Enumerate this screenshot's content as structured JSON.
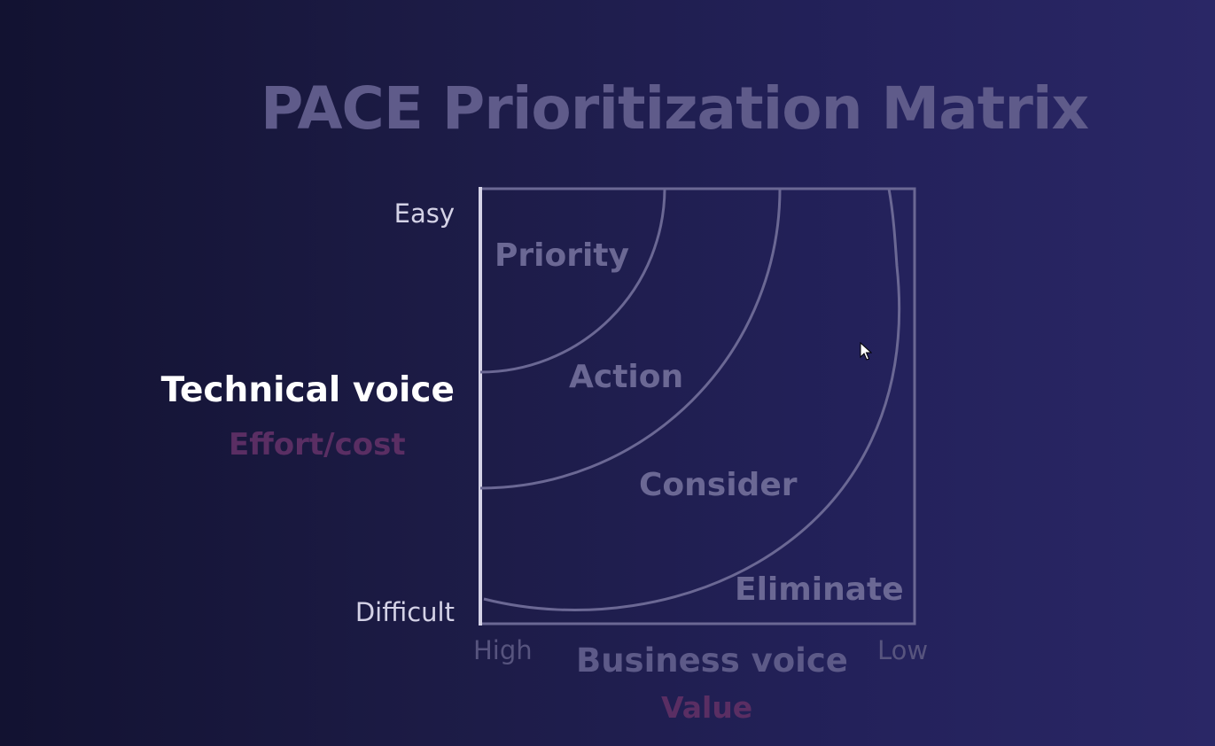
{
  "title": "PACE Prioritization Matrix",
  "y_axis": {
    "top_label": "Easy",
    "bottom_label": "Difficult",
    "title": "Technical voice",
    "subtitle": "Effort/cost"
  },
  "x_axis": {
    "left_label": "High",
    "right_label": "Low",
    "title": "Business voice",
    "subtitle": "Value"
  },
  "zones": {
    "priority": "Priority",
    "action": "Action",
    "consider": "Consider",
    "eliminate": "Eliminate"
  },
  "colors": {
    "title": "#5f5b8a",
    "matrix_lines": "#6b6894",
    "accent_subtitle": "#5a2e63",
    "highlight": "#ffffff"
  },
  "icons": [
    "mouse-cursor-icon"
  ]
}
